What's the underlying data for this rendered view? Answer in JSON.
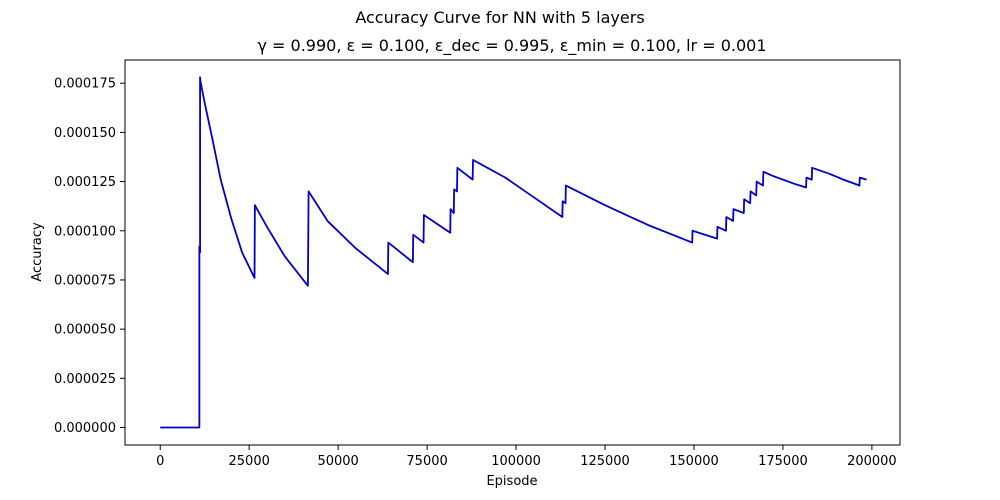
{
  "chart_data": {
    "type": "line",
    "title": "Accuracy Curve for NN with 5 layers",
    "subtitle": "γ = 0.990, ε = 0.100, ε_dec = 0.995, ε_min = 0.100, lr = 0.001",
    "xlabel": "Episode",
    "ylabel": "Accuracy",
    "xlim": [
      -9900,
      207900
    ],
    "ylim": [
      -8.9e-06,
      0.0001868
    ],
    "xticks": [
      0,
      25000,
      50000,
      75000,
      100000,
      125000,
      150000,
      175000,
      200000
    ],
    "xtick_labels": [
      "0",
      "25000",
      "50000",
      "75000",
      "100000",
      "125000",
      "150000",
      "175000",
      "200000"
    ],
    "yticks": [
      0,
      2.5e-05,
      5e-05,
      7.5e-05,
      0.0001,
      0.000125,
      0.00015,
      0.000175
    ],
    "ytick_labels": [
      "0.000000",
      "0.000025",
      "0.000050",
      "0.000075",
      "0.000100",
      "0.000125",
      "0.000150",
      "0.000175"
    ],
    "grid": false,
    "line_color": "#0000cc",
    "series": [
      {
        "x": [
          0,
          11000,
          11000,
          11000,
          11200,
          11200,
          11300,
          12500,
          14500,
          17000,
          20000,
          23000,
          26500,
          26600,
          30000,
          35000,
          41500,
          41600,
          41600,
          41700,
          47000,
          55000,
          64000,
          64100,
          71000,
          71100,
          74000,
          74100,
          81500,
          81600,
          82500,
          82600,
          83400,
          83500,
          87800,
          87900,
          97000,
          105000,
          113000,
          113100,
          113900,
          114000,
          125000,
          137000,
          149500,
          149600,
          156500,
          156600,
          159000,
          159100,
          161000,
          161100,
          164000,
          164100,
          165800,
          165900,
          167500,
          167600,
          169400,
          169500,
          172000,
          175000,
          178000,
          181500,
          181600,
          183100,
          183200,
          188000,
          192000,
          196500,
          196600,
          198500
        ],
        "y": [
          0,
          0,
          9.2e-05,
          8.9e-05,
          8.9e-05,
          0.000178,
          0.000176,
          0.000165,
          0.000148,
          0.000126,
          0.000106,
          8.9e-05,
          7.6e-05,
          0.000113,
          0.000102,
          8.7e-05,
          7.2e-05,
          9.6e-05,
          9.6e-05,
          0.00012,
          0.000105,
          9.1e-05,
          7.8e-05,
          9.4e-05,
          8.4e-05,
          9.8e-05,
          9.4e-05,
          0.000108,
          9.9e-05,
          0.000111,
          0.000109,
          0.000121,
          0.00012,
          0.000132,
          0.000126,
          0.000136,
          0.000127,
          0.000117,
          0.000107,
          0.000115,
          0.000114,
          0.000123,
          0.000113,
          0.000103,
          9.4e-05,
          0.0001,
          9.6e-05,
          0.000102,
          0.0001,
          0.000107,
          0.000105,
          0.000111,
          0.000109,
          0.000116,
          0.000114,
          0.00012,
          0.000118,
          0.000125,
          0.000123,
          0.00013,
          0.000128,
          0.000126,
          0.000124,
          0.000122,
          0.000127,
          0.000126,
          0.000132,
          0.000129,
          0.000126,
          0.000123,
          0.000127,
          0.000126
        ]
      }
    ]
  }
}
